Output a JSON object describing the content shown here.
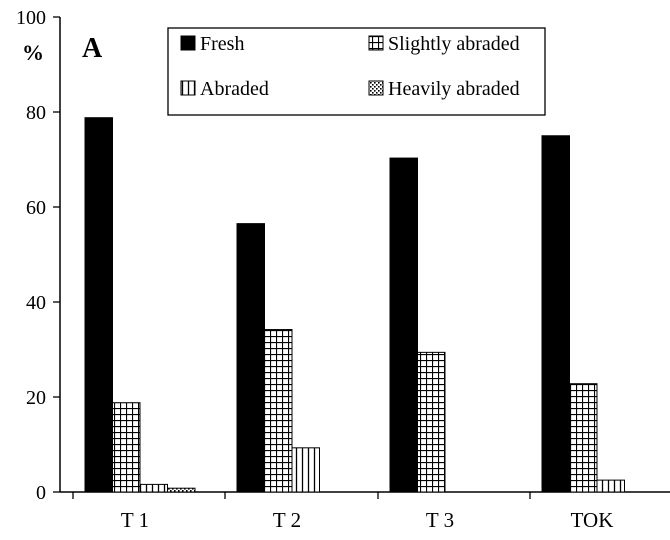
{
  "chart_data": {
    "type": "bar",
    "panel_label": "A",
    "title": "",
    "xlabel": "",
    "ylabel": "%",
    "ylim": [
      0,
      100
    ],
    "yticks": [
      0,
      20,
      40,
      60,
      80,
      100
    ],
    "categories": [
      "T 1",
      "T 2",
      "T 3",
      "TOK"
    ],
    "grid": false,
    "legend_position": "top",
    "series": [
      {
        "name": "Fresh",
        "pattern": "solid",
        "values": [
          78.8,
          56.5,
          70.3,
          75.0
        ]
      },
      {
        "name": "Slightly abraded",
        "pattern": "grid",
        "values": [
          18.8,
          34.2,
          29.4,
          22.8
        ]
      },
      {
        "name": "Abraded",
        "pattern": "vertical-lines",
        "values": [
          1.6,
          9.3,
          0,
          2.5
        ]
      },
      {
        "name": "Heavily abraded",
        "pattern": "dots",
        "values": [
          0.8,
          0,
          0,
          0
        ]
      }
    ],
    "colors": {
      "bar_fill": "#000000",
      "pattern_bg": "#ffffff",
      "axis": "#000000"
    }
  }
}
